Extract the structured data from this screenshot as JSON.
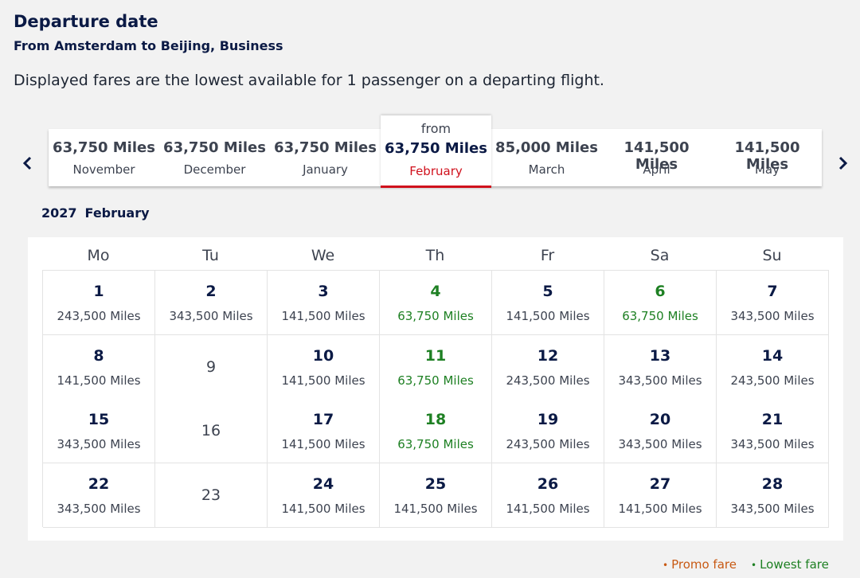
{
  "header": {
    "title": "Departure date",
    "subtitle": "From Amsterdam to Beijing, Business",
    "note": "Displayed fares are the lowest available for 1 passenger on a departing flight."
  },
  "nav": {
    "prev_icon": "chevron-left-icon",
    "next_icon": "chevron-right-icon"
  },
  "months": [
    {
      "miles": "63,750 Miles",
      "name": "November"
    },
    {
      "miles": "63,750 Miles",
      "name": "December"
    },
    {
      "miles": "63,750 Miles",
      "name": "January"
    },
    {
      "from": "from",
      "miles": "63,750 Miles",
      "name": "February"
    },
    {
      "miles": "85,000 Miles",
      "name": "March"
    },
    {
      "miles": "141,500 Miles",
      "name": "April"
    },
    {
      "miles": "141,500 Miles",
      "name": "May"
    }
  ],
  "calendar": {
    "year": "2027",
    "month": "February",
    "weekdays": [
      "Mo",
      "Tu",
      "We",
      "Th",
      "Fr",
      "Sa",
      "Su"
    ],
    "days": [
      {
        "num": "1",
        "price": "243,500 Miles"
      },
      {
        "num": "2",
        "price": "343,500 Miles"
      },
      {
        "num": "3",
        "price": "141,500 Miles"
      },
      {
        "num": "4",
        "price": "63,750 Miles"
      },
      {
        "num": "5",
        "price": "141,500 Miles"
      },
      {
        "num": "6",
        "price": "63,750 Miles"
      },
      {
        "num": "7",
        "price": "343,500 Miles"
      },
      {
        "num": "8",
        "price": "141,500 Miles"
      },
      {
        "num": "9",
        "price": ""
      },
      {
        "num": "10",
        "price": "141,500 Miles"
      },
      {
        "num": "11",
        "price": "63,750 Miles"
      },
      {
        "num": "12",
        "price": "243,500 Miles"
      },
      {
        "num": "13",
        "price": "343,500 Miles"
      },
      {
        "num": "14",
        "price": "243,500 Miles"
      },
      {
        "num": "15",
        "price": "343,500 Miles"
      },
      {
        "num": "16",
        "price": ""
      },
      {
        "num": "17",
        "price": "141,500 Miles"
      },
      {
        "num": "18",
        "price": "63,750 Miles"
      },
      {
        "num": "19",
        "price": "243,500 Miles"
      },
      {
        "num": "20",
        "price": "343,500 Miles"
      },
      {
        "num": "21",
        "price": "343,500 Miles"
      },
      {
        "num": "22",
        "price": "343,500 Miles"
      },
      {
        "num": "23",
        "price": ""
      },
      {
        "num": "24",
        "price": "141,500 Miles"
      },
      {
        "num": "25",
        "price": "141,500 Miles"
      },
      {
        "num": "26",
        "price": "141,500 Miles"
      },
      {
        "num": "27",
        "price": "141,500 Miles"
      },
      {
        "num": "28",
        "price": "343,500 Miles"
      }
    ]
  },
  "legend": {
    "promo": "Promo fare",
    "lowest": "Lowest fare",
    "bullet": "•"
  },
  "colors": {
    "lowest": "#1e8023",
    "promo": "#c85a14",
    "active": "#d0101c",
    "navy": "#0b1a45"
  }
}
